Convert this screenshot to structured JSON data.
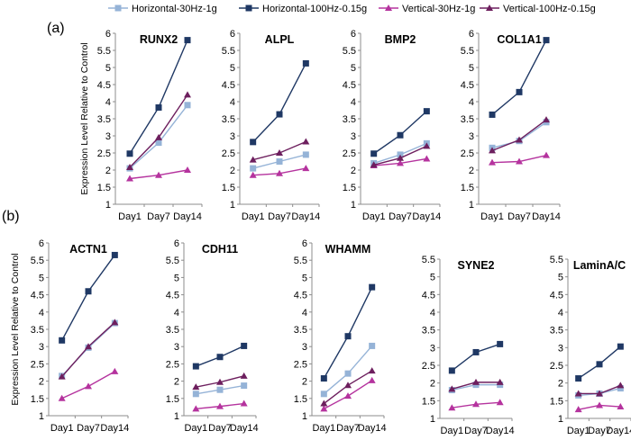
{
  "legend": [
    {
      "label": "Horizontal-30Hz-1g",
      "color": "#95b3d7",
      "marker": "square"
    },
    {
      "label": "Horizontal-100Hz-0.15g",
      "color": "#1f3864",
      "marker": "square"
    },
    {
      "label": "Vertical-30Hz-1g",
      "color": "#b5339e",
      "marker": "triangle"
    },
    {
      "label": "Vertical-100Hz-0.15g",
      "color": "#6d1f5e",
      "marker": "triangle"
    }
  ],
  "panel_labels": {
    "a": "(a)",
    "b": "(b)"
  },
  "ylabel": "Expression Level Relative to Control",
  "chart_data": [
    {
      "type": "line",
      "title": "RUNX2",
      "categories": [
        "Day1",
        "Day7",
        "Day14"
      ],
      "ylim": [
        1,
        6
      ],
      "yticks": [
        "1",
        "1.5",
        "2",
        "2.5",
        "3",
        "3.5",
        "4",
        "4.5",
        "5",
        "5.5",
        "6"
      ],
      "series": [
        {
          "name": "Horizontal-30Hz-1g",
          "values": [
            2.05,
            2.8,
            3.9
          ]
        },
        {
          "name": "Horizontal-100Hz-0.15g",
          "values": [
            2.48,
            3.83,
            5.8
          ]
        },
        {
          "name": "Vertical-30Hz-1g",
          "values": [
            1.75,
            1.85,
            2.0
          ]
        },
        {
          "name": "Vertical-100Hz-0.15g",
          "values": [
            2.08,
            2.95,
            4.2
          ]
        }
      ]
    },
    {
      "type": "line",
      "title": "ALPL",
      "categories": [
        "Day1",
        "Day7",
        "Day14"
      ],
      "ylim": [
        1,
        6
      ],
      "yticks": [
        "1",
        "1.5",
        "2",
        "2.5",
        "3",
        "3.5",
        "4",
        "4.5",
        "5",
        "5.5",
        "6"
      ],
      "series": [
        {
          "name": "Horizontal-30Hz-1g",
          "values": [
            2.05,
            2.25,
            2.45
          ]
        },
        {
          "name": "Horizontal-100Hz-0.15g",
          "values": [
            2.82,
            3.63,
            5.12
          ]
        },
        {
          "name": "Vertical-30Hz-1g",
          "values": [
            1.85,
            1.9,
            2.05
          ]
        },
        {
          "name": "Vertical-100Hz-0.15g",
          "values": [
            2.3,
            2.5,
            2.83
          ]
        }
      ]
    },
    {
      "type": "line",
      "title": "BMP2",
      "categories": [
        "Day1",
        "Day7",
        "Day14"
      ],
      "ylim": [
        1,
        6
      ],
      "yticks": [
        "1",
        "1.5",
        "2",
        "2.5",
        "3",
        "3.5",
        "4",
        "4.5",
        "5",
        "5.5",
        "6"
      ],
      "series": [
        {
          "name": "Horizontal-30Hz-1g",
          "values": [
            2.2,
            2.45,
            2.78
          ]
        },
        {
          "name": "Horizontal-100Hz-0.15g",
          "values": [
            2.48,
            3.02,
            3.72
          ]
        },
        {
          "name": "Vertical-30Hz-1g",
          "values": [
            2.13,
            2.2,
            2.33
          ]
        },
        {
          "name": "Vertical-100Hz-0.15g",
          "values": [
            2.15,
            2.35,
            2.7
          ]
        }
      ]
    },
    {
      "type": "line",
      "title": "COL1A1",
      "categories": [
        "Day1",
        "Day7",
        "Day14"
      ],
      "ylim": [
        1,
        6
      ],
      "yticks": [
        "1",
        "1.5",
        "2",
        "2.5",
        "3",
        "3.5",
        "4",
        "4.5",
        "5",
        "5.5",
        "6"
      ],
      "series": [
        {
          "name": "Horizontal-30Hz-1g",
          "values": [
            2.65,
            2.85,
            3.4
          ]
        },
        {
          "name": "Horizontal-100Hz-0.15g",
          "values": [
            3.62,
            4.28,
            5.8
          ]
        },
        {
          "name": "Vertical-30Hz-1g",
          "values": [
            2.22,
            2.25,
            2.43
          ]
        },
        {
          "name": "Vertical-100Hz-0.15g",
          "values": [
            2.57,
            2.88,
            3.47
          ]
        }
      ]
    },
    {
      "type": "line",
      "title": "ACTN1",
      "categories": [
        "Day1",
        "Day7",
        "Day14"
      ],
      "ylim": [
        1,
        6
      ],
      "yticks": [
        "1",
        "1.5",
        "2",
        "2.5",
        "3",
        "3.5",
        "4",
        "4.5",
        "5",
        "5.5",
        "6"
      ],
      "series": [
        {
          "name": "Horizontal-30Hz-1g",
          "values": [
            2.15,
            2.97,
            3.68
          ]
        },
        {
          "name": "Horizontal-100Hz-0.15g",
          "values": [
            3.18,
            4.6,
            5.65
          ]
        },
        {
          "name": "Vertical-30Hz-1g",
          "values": [
            1.5,
            1.85,
            2.28
          ]
        },
        {
          "name": "Vertical-100Hz-0.15g",
          "values": [
            2.13,
            3.0,
            3.7
          ]
        }
      ]
    },
    {
      "type": "line",
      "title": "CDH11",
      "categories": [
        "Day1",
        "Day7",
        "Day14"
      ],
      "ylim": [
        1,
        6
      ],
      "yticks": [
        "1",
        "1.5",
        "2",
        "2.5",
        "3",
        "3.5",
        "4",
        "4.5",
        "5",
        "5.5",
        "6"
      ],
      "series": [
        {
          "name": "Horizontal-30Hz-1g",
          "values": [
            1.63,
            1.75,
            1.87
          ]
        },
        {
          "name": "Horizontal-100Hz-0.15g",
          "values": [
            2.43,
            2.7,
            3.02
          ]
        },
        {
          "name": "Vertical-30Hz-1g",
          "values": [
            1.2,
            1.27,
            1.35
          ]
        },
        {
          "name": "Vertical-100Hz-0.15g",
          "values": [
            1.83,
            1.97,
            2.15
          ]
        }
      ]
    },
    {
      "type": "line",
      "title": "WHAMM",
      "categories": [
        "Day1",
        "Day7",
        "Day14"
      ],
      "ylim": [
        1,
        6
      ],
      "yticks": [
        "1",
        "1.5",
        "2",
        "2.5",
        "3",
        "3.5",
        "4",
        "4.5",
        "5",
        "5.5",
        "6"
      ],
      "series": [
        {
          "name": "Horizontal-30Hz-1g",
          "values": [
            1.63,
            2.22,
            3.02
          ]
        },
        {
          "name": "Horizontal-100Hz-0.15g",
          "values": [
            2.08,
            3.3,
            4.72
          ]
        },
        {
          "name": "Vertical-30Hz-1g",
          "values": [
            1.2,
            1.57,
            2.02
          ]
        },
        {
          "name": "Vertical-100Hz-0.15g",
          "values": [
            1.35,
            1.88,
            2.3
          ]
        }
      ]
    },
    {
      "type": "line",
      "title": "SYNE2",
      "categories": [
        "Day1",
        "Day7",
        "Day14"
      ],
      "ylim": [
        1,
        5.5
      ],
      "yticks": [
        "1",
        "1.5",
        "2",
        "2.5",
        "3",
        "3.5",
        "4",
        "4.5",
        "5",
        "5.5"
      ],
      "series": [
        {
          "name": "Horizontal-30Hz-1g",
          "values": [
            1.8,
            1.95,
            1.95
          ]
        },
        {
          "name": "Horizontal-100Hz-0.15g",
          "values": [
            2.35,
            2.87,
            3.1
          ]
        },
        {
          "name": "Vertical-30Hz-1g",
          "values": [
            1.3,
            1.4,
            1.45
          ]
        },
        {
          "name": "Vertical-100Hz-0.15g",
          "values": [
            1.83,
            2.02,
            2.02
          ]
        }
      ]
    },
    {
      "type": "line",
      "title": "LaminA/C",
      "categories": [
        "Day1",
        "Day7",
        "Day14"
      ],
      "ylim": [
        1,
        5.5
      ],
      "yticks": [
        "1",
        "1.5",
        "2",
        "2.5",
        "3",
        "3.5",
        "4",
        "4.5",
        "5",
        "5.5"
      ],
      "series": [
        {
          "name": "Horizontal-30Hz-1g",
          "values": [
            1.65,
            1.7,
            1.85
          ]
        },
        {
          "name": "Horizontal-100Hz-0.15g",
          "values": [
            2.13,
            2.53,
            3.03
          ]
        },
        {
          "name": "Vertical-30Hz-1g",
          "values": [
            1.25,
            1.37,
            1.33
          ]
        },
        {
          "name": "Vertical-100Hz-0.15g",
          "values": [
            1.7,
            1.7,
            1.93
          ]
        }
      ]
    }
  ]
}
